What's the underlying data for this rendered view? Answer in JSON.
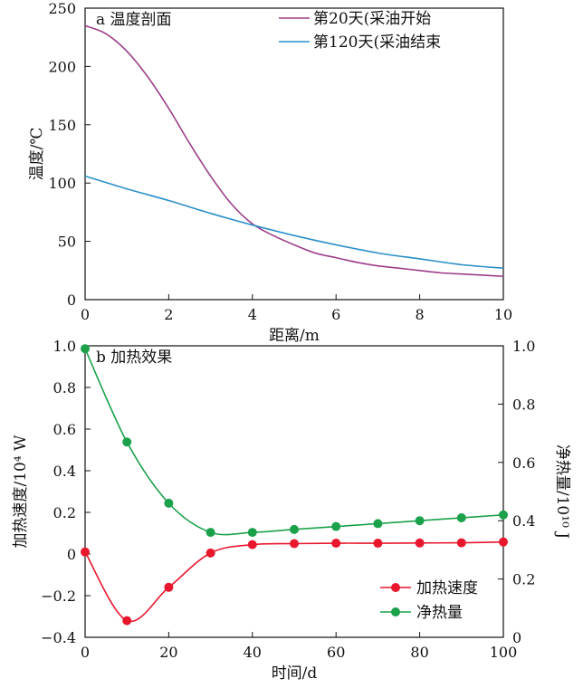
{
  "chart_data": [
    {
      "type": "line",
      "title": "a 温度剖面",
      "xlabel": "距离/m",
      "ylabel": "温度/℃",
      "xlim": [
        0,
        10
      ],
      "ylim": [
        0,
        250
      ],
      "xticks": [
        "0",
        "2",
        "4",
        "6",
        "8",
        "10"
      ],
      "yticks": [
        "0",
        "50",
        "100",
        "150",
        "200",
        "250"
      ],
      "legend_position": "top-right",
      "series": [
        {
          "name": "第20天(采油开始",
          "color": "#9c3e8a",
          "x": [
            0,
            0.5,
            1,
            1.5,
            2,
            2.5,
            3,
            3.5,
            4,
            4.5,
            5,
            5.5,
            6,
            6.5,
            7,
            7.5,
            8,
            8.5,
            9,
            9.5,
            10
          ],
          "y": [
            235,
            228,
            213,
            191,
            164,
            134,
            106,
            82,
            65,
            55,
            47,
            40,
            36,
            32,
            29,
            27,
            25,
            23,
            22,
            21,
            20
          ]
        },
        {
          "name": "第120天(采油结束",
          "color": "#2a8fc8",
          "x": [
            0,
            1,
            2,
            3,
            4,
            5,
            6,
            7,
            8,
            9,
            10
          ],
          "y": [
            106,
            95,
            85,
            74,
            64,
            55,
            47,
            40,
            35,
            30,
            27
          ]
        }
      ]
    },
    {
      "type": "line",
      "title": "b 加热效果",
      "xlabel": "时间/d",
      "ylabel_left": "加热速度/10⁴ W",
      "ylabel_right": "净热量/10¹⁰ J",
      "xlim": [
        0,
        100
      ],
      "ylim_left": [
        -0.4,
        1.0
      ],
      "ylim_right": [
        0,
        1.0
      ],
      "xticks": [
        "0",
        "20",
        "40",
        "60",
        "80",
        "100"
      ],
      "yticks_left": [
        "−0.4",
        "−0.2",
        "0",
        "0.2",
        "0.4",
        "0.6",
        "0.8",
        "1.0"
      ],
      "yticks_right": [
        "0",
        "0.2",
        "0.4",
        "0.6",
        "0.8",
        "1.0"
      ],
      "legend_position": "bottom-right",
      "series": [
        {
          "name": "加热速度",
          "color": "#e8172d",
          "axis": "left",
          "x": [
            0,
            10,
            20,
            30,
            40,
            50,
            60,
            70,
            80,
            90,
            100
          ],
          "y": [
            0.01,
            -0.32,
            -0.16,
            0.005,
            0.045,
            0.05,
            0.052,
            0.052,
            0.053,
            0.054,
            0.058
          ]
        },
        {
          "name": "净热量",
          "color": "#1aa14a",
          "axis": "right",
          "x": [
            0,
            10,
            20,
            30,
            40,
            50,
            60,
            70,
            80,
            90,
            100
          ],
          "y": [
            0.99,
            0.67,
            0.46,
            0.36,
            0.36,
            0.37,
            0.38,
            0.39,
            0.4,
            0.41,
            0.42
          ]
        }
      ]
    }
  ]
}
